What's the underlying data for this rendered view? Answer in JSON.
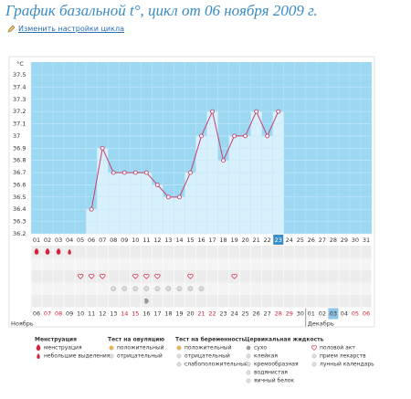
{
  "header": {
    "title": "График базальной t°, цикл от 06 ноября 2009 г.",
    "link": "Изменить настройки цикла"
  },
  "chart_data": {
    "type": "line",
    "y_label": "°C",
    "categories": [
      "01",
      "02",
      "03",
      "04",
      "05",
      "06",
      "07",
      "08",
      "09",
      "10",
      "11",
      "12",
      "13",
      "14",
      "15",
      "16",
      "17",
      "18",
      "19",
      "20",
      "21",
      "22",
      "23",
      "24",
      "25",
      "26",
      "27",
      "28",
      "29",
      "30",
      "31"
    ],
    "dates": [
      "06",
      "07",
      "08",
      "09",
      "10",
      "11",
      "12",
      "13",
      "14",
      "15",
      "16",
      "17",
      "18",
      "19",
      "20",
      "21",
      "22",
      "23",
      "24",
      "25",
      "26",
      "27",
      "28",
      "29",
      "30",
      "01",
      "02",
      "03",
      "04",
      "05",
      "06"
    ],
    "months": [
      "Ноябрь",
      "Декабрь"
    ],
    "weekends": [
      1,
      2,
      8,
      9,
      15,
      16,
      22,
      23,
      29,
      30
    ],
    "weekend_color": "#d0203a",
    "highlight": 22,
    "series": [
      {
        "color": "#c2416d",
        "values": [
          null,
          null,
          null,
          null,
          null,
          36.4,
          36.9,
          36.7,
          36.7,
          36.7,
          36.7,
          36.6,
          36.5,
          36.5,
          36.7,
          37.0,
          37.2,
          36.8,
          37.0,
          37.0,
          37.2,
          37.0,
          37.2,
          null,
          null,
          null,
          null,
          null,
          null,
          null,
          null
        ]
      }
    ],
    "ylim": [
      36.2,
      37.5
    ],
    "yticks": [
      37.5,
      37.4,
      37.3,
      37.2,
      37.1,
      37,
      36.9,
      36.8,
      36.7,
      36.6,
      36.5,
      36.4,
      36.3,
      36.2
    ],
    "grid": true,
    "background": "#9dd8f3",
    "bar_color": "#d8f0fb",
    "day_marks": {
      "menstruation": [
        0,
        1,
        2
      ],
      "light_bleeding": [
        3
      ],
      "intercourse": [
        4,
        5,
        6,
        9,
        10,
        11,
        14,
        18
      ],
      "medicine": [
        7,
        8,
        9,
        10,
        11,
        12,
        13,
        14,
        15
      ],
      "creamy": [
        10
      ],
      "lunar": [
        16
      ]
    }
  },
  "legend": {
    "groups": [
      {
        "title": "Менструация",
        "items": [
          "менструация",
          "небольшие выделения"
        ]
      },
      {
        "title": "Тест на овуляцию",
        "items": [
          "положительный",
          "отрицательный"
        ]
      },
      {
        "title": "Тест на беременность",
        "items": [
          "положительный",
          "отрицательный",
          "слабоположительный"
        ]
      },
      {
        "title": "Цервикальная жидкость",
        "items": [
          "сухо",
          "клейкая",
          "кремообразная",
          "водянистая",
          "яичный белок"
        ]
      },
      {
        "items": [
          "половой акт",
          "прием лекарств",
          "лунный календарь"
        ]
      }
    ]
  }
}
